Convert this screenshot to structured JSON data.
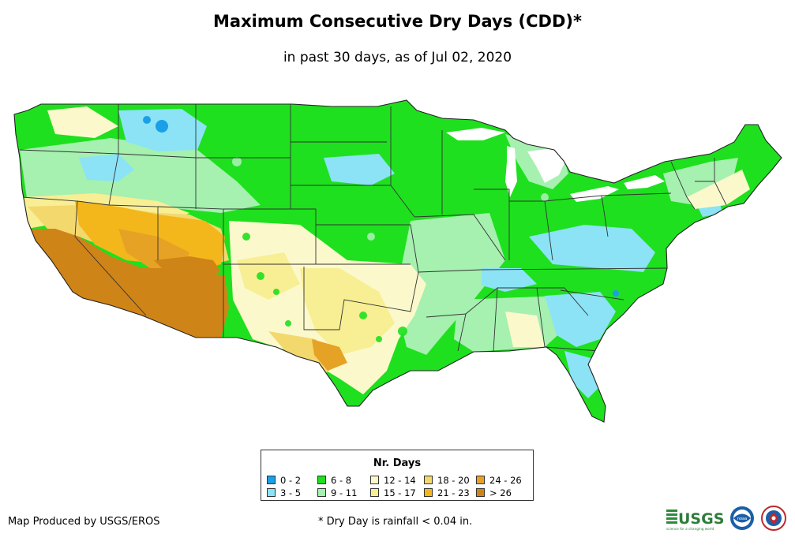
{
  "title": "Maximum Consecutive Dry Days (CDD)*",
  "subtitle": "in past 30 days, as of Jul 02, 2020",
  "legend": {
    "title": "Nr. Days",
    "items": [
      {
        "label": "0 - 2",
        "color": "#1ba0e8"
      },
      {
        "label": "3 - 5",
        "color": "#8be3f5"
      },
      {
        "label": "6 - 8",
        "color": "#1ee01e"
      },
      {
        "label": "9 - 11",
        "color": "#a6f0b0"
      },
      {
        "label": "12 - 14",
        "color": "#fbf9cc"
      },
      {
        "label": "15 - 17",
        "color": "#f8ee93"
      },
      {
        "label": "18 - 20",
        "color": "#f3d86e"
      },
      {
        "label": "21 - 23",
        "color": "#f3b71b"
      },
      {
        "label": "24 - 26",
        "color": "#e6a225"
      },
      {
        "label": "> 26",
        "color": "#cf8418"
      }
    ]
  },
  "credit": "Map Produced by USGS/EROS",
  "footnote": "* Dry Day is rainfall < 0.04 in.",
  "logos": {
    "usgs_text": "USGS",
    "usgs_tagline": "science for a changing world",
    "noaa_text": "noaa"
  }
}
